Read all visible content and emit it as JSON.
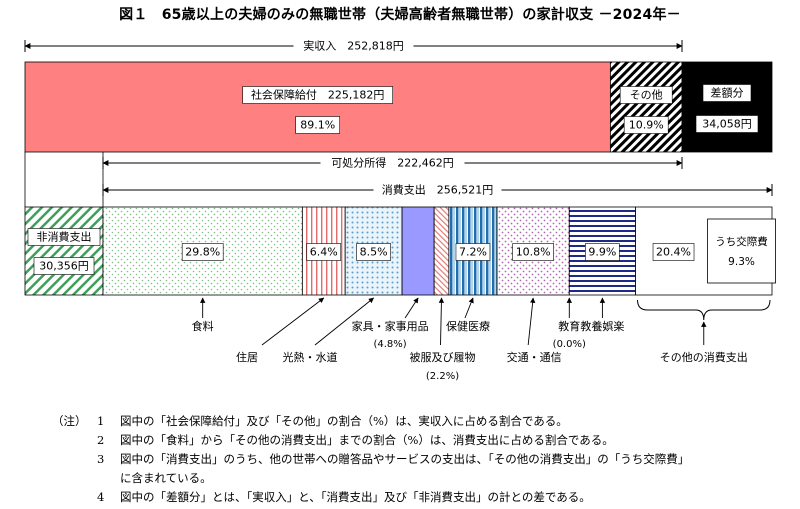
{
  "title": "図１　65歳以上の夫婦のみの無職世帯（夫婦高齢者無職世帯）の家計収支 －2024年－",
  "chart_data": {
    "type": "bar",
    "income": {
      "label": "実収入",
      "value": 252818,
      "value_label": "252,818円",
      "segments": [
        {
          "name": "社会保障給付",
          "value": 225182,
          "value_label": "225,182円",
          "pct": 89.1,
          "pct_label": "89.1%",
          "color": "#ff8080"
        },
        {
          "name": "その他",
          "pct": 10.9,
          "pct_label": "10.9%"
        }
      ],
      "deficit": {
        "name": "差額分",
        "value": 34058,
        "value_label": "34,058円",
        "color": "#000000"
      }
    },
    "disposable_income": {
      "label": "可処分所得",
      "value": 222462,
      "value_label": "222,462円"
    },
    "consumption": {
      "label": "消費支出",
      "value": 256521,
      "value_label": "256,521円"
    },
    "non_consumption": {
      "name": "非消費支出",
      "value": 30356,
      "value_label": "30,356円"
    },
    "expenditure_categories": [
      {
        "name": "食料",
        "pct": 29.8,
        "pct_label": "29.8%",
        "show_pct_in_bar": true
      },
      {
        "name": "住居",
        "pct": 6.4,
        "pct_label": "6.4%",
        "show_pct_in_bar": true
      },
      {
        "name": "光熱・水道",
        "pct": 8.5,
        "pct_label": "8.5%",
        "show_pct_in_bar": true
      },
      {
        "name": "家具・家事用品",
        "pct": 4.8,
        "pct_label": "(4.8%)",
        "show_pct_in_bar": false,
        "color": "#9999ff"
      },
      {
        "name": "被服及び履物",
        "pct": 2.2,
        "pct_label": "(2.2%)",
        "show_pct_in_bar": false
      },
      {
        "name": "保健医療",
        "pct": 7.2,
        "pct_label": "7.2%",
        "show_pct_in_bar": true
      },
      {
        "name": "交通・通信",
        "pct": 10.8,
        "pct_label": "10.8%",
        "show_pct_in_bar": true
      },
      {
        "name": "教育",
        "pct": 0.0,
        "pct_label": "(0.0%)",
        "show_pct_in_bar": false
      },
      {
        "name": "教養娯楽",
        "pct": 9.9,
        "pct_label": "9.9%",
        "show_pct_in_bar": true
      },
      {
        "name": "その他の消費支出",
        "pct": 20.4,
        "pct_label": "20.4%",
        "show_pct_in_bar": true
      }
    ],
    "sub_item": {
      "name": "うち交際費",
      "pct": 9.3,
      "pct_label": "9.3%"
    }
  },
  "notes": {
    "prefix": "（注）",
    "items": [
      {
        "num": "1",
        "text": "図中の「社会保障給付」及び「その他」の割合（%）は、実収入に占める割合である。",
        "cont": ""
      },
      {
        "num": "2",
        "text": "図中の「食料」から「その他の消費支出」までの割合（%）は、消費支出に占める割合である。",
        "cont": ""
      },
      {
        "num": "3",
        "text": "図中の「消費支出」のうち、他の世帯への贈答品やサービスの支出は、「その他の消費支出」の「うち交際費」",
        "cont": "に含まれている。"
      },
      {
        "num": "4",
        "text": "図中の「差額分」とは、「実収入」と、「消費支出」及び「非消費支出」の計との差である。",
        "cont": ""
      }
    ]
  }
}
